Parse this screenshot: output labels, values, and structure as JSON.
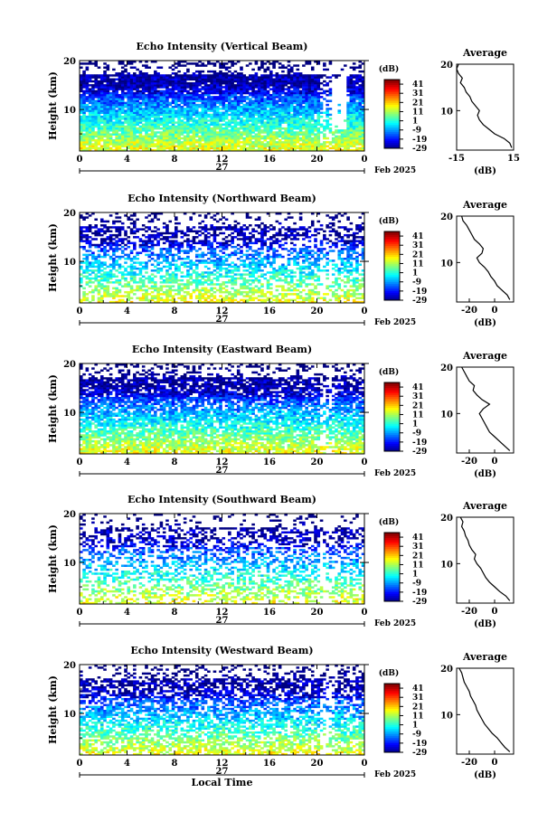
{
  "chart_data": [
    {
      "type": "heatmap",
      "title": "Echo Intensity (Vertical Beam)",
      "ylabel": "Height (km)",
      "x_ticks": [
        "0",
        "4",
        "8",
        "12",
        "16",
        "20",
        "0"
      ],
      "y_ticks": [
        "20",
        "10"
      ],
      "date_label": "27",
      "month_label": "Feb 2025",
      "xlim": [
        0,
        24
      ],
      "ylim": [
        1.5,
        20
      ],
      "colorbar": {
        "label": "(dB)",
        "ticks": [
          "41",
          "31",
          "21",
          "11",
          "1",
          "-9",
          "-19",
          "-29"
        ],
        "range": [
          -29,
          46
        ]
      },
      "average": {
        "title": "Average",
        "xlabel": "(dB)",
        "x_ticks": [
          "-15",
          "15"
        ],
        "xlim": [
          -15,
          15
        ],
        "y_ticks": [
          "20",
          "10"
        ],
        "profile": [
          [
            14,
            2
          ],
          [
            13,
            3
          ],
          [
            10,
            4
          ],
          [
            5,
            5
          ],
          [
            2,
            6
          ],
          [
            -1,
            7
          ],
          [
            -3,
            8
          ],
          [
            -4,
            9
          ],
          [
            -3,
            10
          ],
          [
            -5,
            11
          ],
          [
            -7,
            12
          ],
          [
            -8,
            13
          ],
          [
            -10,
            14
          ],
          [
            -11,
            15
          ],
          [
            -13,
            16
          ],
          [
            -12,
            17
          ],
          [
            -14,
            18
          ],
          [
            -15,
            19
          ],
          [
            -14,
            20
          ]
        ]
      }
    },
    {
      "type": "heatmap",
      "title": "Echo Intensity (Northward Beam)",
      "ylabel": "Height (km)",
      "x_ticks": [
        "0",
        "4",
        "8",
        "12",
        "16",
        "20",
        "0"
      ],
      "y_ticks": [
        "20",
        "10"
      ],
      "date_label": "27",
      "month_label": "Feb 2025",
      "xlim": [
        0,
        24
      ],
      "ylim": [
        1.5,
        20
      ],
      "colorbar": {
        "label": "(dB)",
        "ticks": [
          "41",
          "31",
          "21",
          "11",
          "1",
          "-9",
          "-19",
          "-29"
        ],
        "range": [
          -29,
          46
        ]
      },
      "average": {
        "title": "Average",
        "xlabel": "(dB)",
        "x_ticks": [
          "-20",
          "0"
        ],
        "xlim": [
          -30,
          15
        ],
        "y_ticks": [
          "20",
          "10"
        ],
        "profile": [
          [
            12,
            2
          ],
          [
            10,
            3
          ],
          [
            6,
            4
          ],
          [
            2,
            5
          ],
          [
            0,
            6
          ],
          [
            -3,
            7
          ],
          [
            -5,
            8
          ],
          [
            -8,
            9
          ],
          [
            -12,
            10
          ],
          [
            -14,
            11
          ],
          [
            -10,
            12
          ],
          [
            -9,
            13
          ],
          [
            -12,
            14
          ],
          [
            -16,
            15
          ],
          [
            -18,
            16
          ],
          [
            -20,
            17
          ],
          [
            -22,
            18
          ],
          [
            -25,
            19
          ],
          [
            -26,
            20
          ]
        ]
      }
    },
    {
      "type": "heatmap",
      "title": "Echo Intensity (Eastward Beam)",
      "ylabel": "Height (km)",
      "x_ticks": [
        "0",
        "4",
        "8",
        "12",
        "16",
        "20",
        "0"
      ],
      "y_ticks": [
        "20",
        "10"
      ],
      "date_label": "27",
      "month_label": "Feb 2025",
      "xlim": [
        0,
        24
      ],
      "ylim": [
        1.5,
        20
      ],
      "colorbar": {
        "label": "(dB)",
        "ticks": [
          "41",
          "31",
          "21",
          "11",
          "1",
          "-9",
          "-19",
          "-29"
        ],
        "range": [
          -29,
          46
        ]
      },
      "average": {
        "title": "Average",
        "xlabel": "(dB)",
        "x_ticks": [
          "-20",
          "0"
        ],
        "xlim": [
          -30,
          15
        ],
        "y_ticks": [
          "20",
          "10"
        ],
        "profile": [
          [
            12,
            2
          ],
          [
            8,
            3
          ],
          [
            4,
            4
          ],
          [
            0,
            5
          ],
          [
            -4,
            6
          ],
          [
            -6,
            7
          ],
          [
            -8,
            8
          ],
          [
            -10,
            9
          ],
          [
            -12,
            10
          ],
          [
            -9,
            11
          ],
          [
            -4,
            12
          ],
          [
            -10,
            13
          ],
          [
            -14,
            14
          ],
          [
            -17,
            15
          ],
          [
            -16,
            16
          ],
          [
            -20,
            17
          ],
          [
            -22,
            18
          ],
          [
            -24,
            19
          ],
          [
            -26,
            20
          ]
        ]
      }
    },
    {
      "type": "heatmap",
      "title": "Echo Intensity (Southward Beam)",
      "ylabel": "Height (km)",
      "x_ticks": [
        "0",
        "4",
        "8",
        "12",
        "16",
        "20",
        "0"
      ],
      "y_ticks": [
        "20",
        "10"
      ],
      "date_label": "27",
      "month_label": "Feb 2025",
      "xlim": [
        0,
        24
      ],
      "ylim": [
        1.5,
        20
      ],
      "colorbar": {
        "label": "(dB)",
        "ticks": [
          "41",
          "31",
          "21",
          "11",
          "1",
          "-9",
          "-19",
          "-29"
        ],
        "range": [
          -29,
          46
        ]
      },
      "average": {
        "title": "Average",
        "xlabel": "(dB)",
        "x_ticks": [
          "-20",
          "0"
        ],
        "xlim": [
          -30,
          15
        ],
        "y_ticks": [
          "20",
          "10"
        ],
        "profile": [
          [
            12,
            2
          ],
          [
            9,
            3
          ],
          [
            4,
            4
          ],
          [
            0,
            5
          ],
          [
            -4,
            6
          ],
          [
            -7,
            7
          ],
          [
            -9,
            8
          ],
          [
            -11,
            9
          ],
          [
            -14,
            10
          ],
          [
            -16,
            11
          ],
          [
            -15,
            12
          ],
          [
            -18,
            13
          ],
          [
            -20,
            14
          ],
          [
            -21,
            15
          ],
          [
            -23,
            16
          ],
          [
            -24,
            17
          ],
          [
            -26,
            18
          ],
          [
            -25,
            19
          ],
          [
            -27,
            20
          ]
        ]
      }
    },
    {
      "type": "heatmap",
      "title": "Echo Intensity (Westward Beam)",
      "ylabel": "Height (km)",
      "xlabel": "Local Time",
      "x_ticks": [
        "0",
        "4",
        "8",
        "12",
        "16",
        "20",
        "0"
      ],
      "y_ticks": [
        "20",
        "10"
      ],
      "date_label": "27",
      "month_label": "Feb 2025",
      "xlim": [
        0,
        24
      ],
      "ylim": [
        1.5,
        20
      ],
      "colorbar": {
        "label": "(dB)",
        "ticks": [
          "41",
          "31",
          "21",
          "11",
          "1",
          "-9",
          "-19",
          "-29"
        ],
        "range": [
          -29,
          46
        ]
      },
      "average": {
        "title": "Average",
        "xlabel": "(dB)",
        "x_ticks": [
          "-20",
          "0"
        ],
        "xlim": [
          -30,
          15
        ],
        "y_ticks": [
          "20",
          "10"
        ],
        "profile": [
          [
            12,
            2
          ],
          [
            8,
            3
          ],
          [
            5,
            4
          ],
          [
            2,
            5
          ],
          [
            -2,
            6
          ],
          [
            -5,
            7
          ],
          [
            -8,
            8
          ],
          [
            -10,
            9
          ],
          [
            -12,
            10
          ],
          [
            -14,
            11
          ],
          [
            -15,
            12
          ],
          [
            -17,
            13
          ],
          [
            -19,
            14
          ],
          [
            -20,
            15
          ],
          [
            -22,
            16
          ],
          [
            -24,
            17
          ],
          [
            -25,
            18
          ],
          [
            -26,
            19
          ],
          [
            -28,
            20
          ]
        ]
      }
    }
  ]
}
